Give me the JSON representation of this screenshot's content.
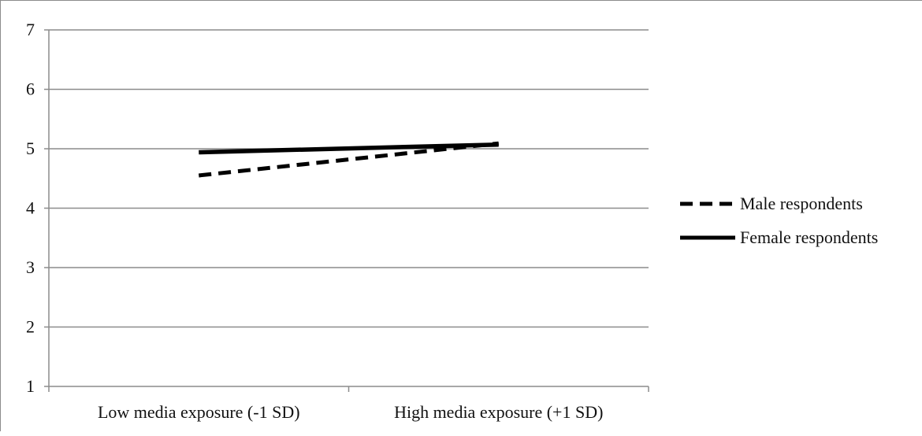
{
  "chart_data": {
    "type": "line",
    "title": "",
    "xlabel": "",
    "ylabel": "",
    "categories": [
      "Low media exposure (-1 SD)",
      "High media exposure (+1 SD)"
    ],
    "ylim": [
      1,
      7
    ],
    "yticks": [
      "1",
      "2",
      "3",
      "4",
      "5",
      "6",
      "7"
    ],
    "grid": true,
    "legend_position": "right",
    "series": [
      {
        "name": "Male respondents",
        "values": [
          4.55,
          5.09
        ],
        "style": "dashed",
        "color": "#000000"
      },
      {
        "name": "Female respondents",
        "values": [
          4.94,
          5.07
        ],
        "style": "solid",
        "color": "#000000"
      }
    ]
  }
}
